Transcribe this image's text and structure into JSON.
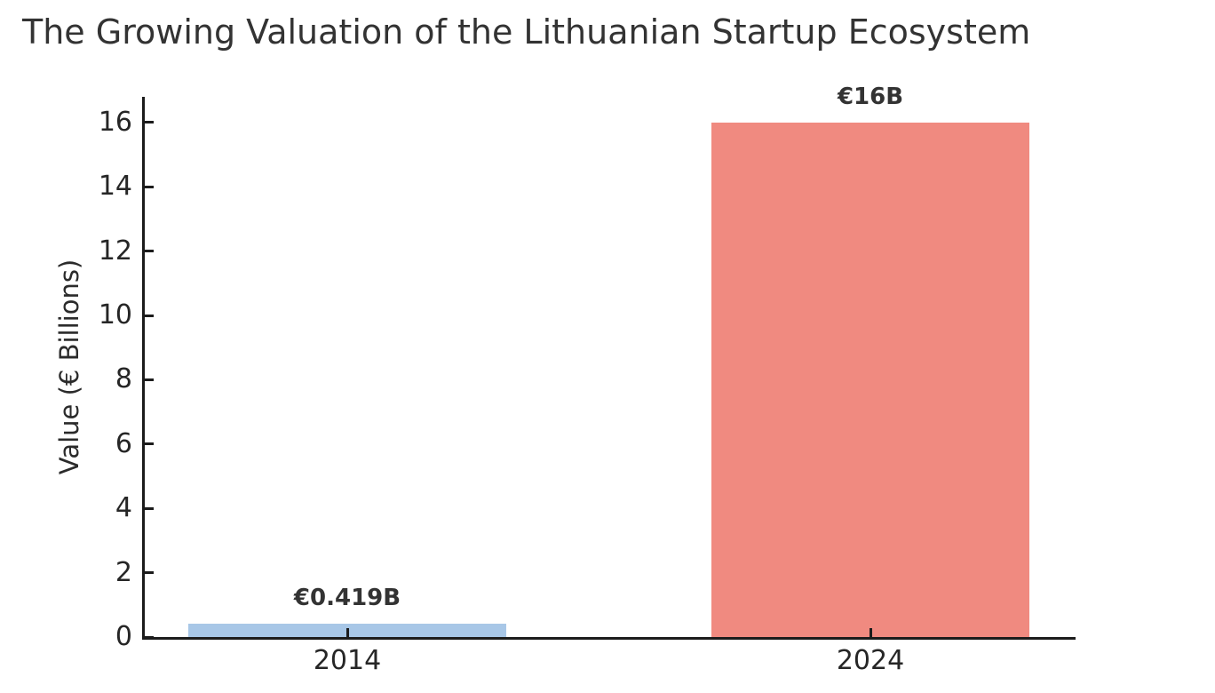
{
  "chart_data": {
    "type": "bar",
    "title": "The Growing Valuation of the Lithuanian Startup Ecosystem",
    "ylabel": "Value (€ Billions)",
    "xlabel": "",
    "categories": [
      "2014",
      "2024"
    ],
    "values": [
      0.419,
      16
    ],
    "bar_labels": [
      "€0.419B",
      "€16B"
    ],
    "bar_colors": [
      "#a8c7e7",
      "#f08a80"
    ],
    "yticks": [
      0,
      2,
      4,
      6,
      8,
      10,
      12,
      14,
      16
    ],
    "ylim": [
      0,
      16.8
    ],
    "grid": false,
    "legend": null,
    "tick_direction": "in",
    "axis_color": "#1c1c1c",
    "text_color": "#333333"
  }
}
